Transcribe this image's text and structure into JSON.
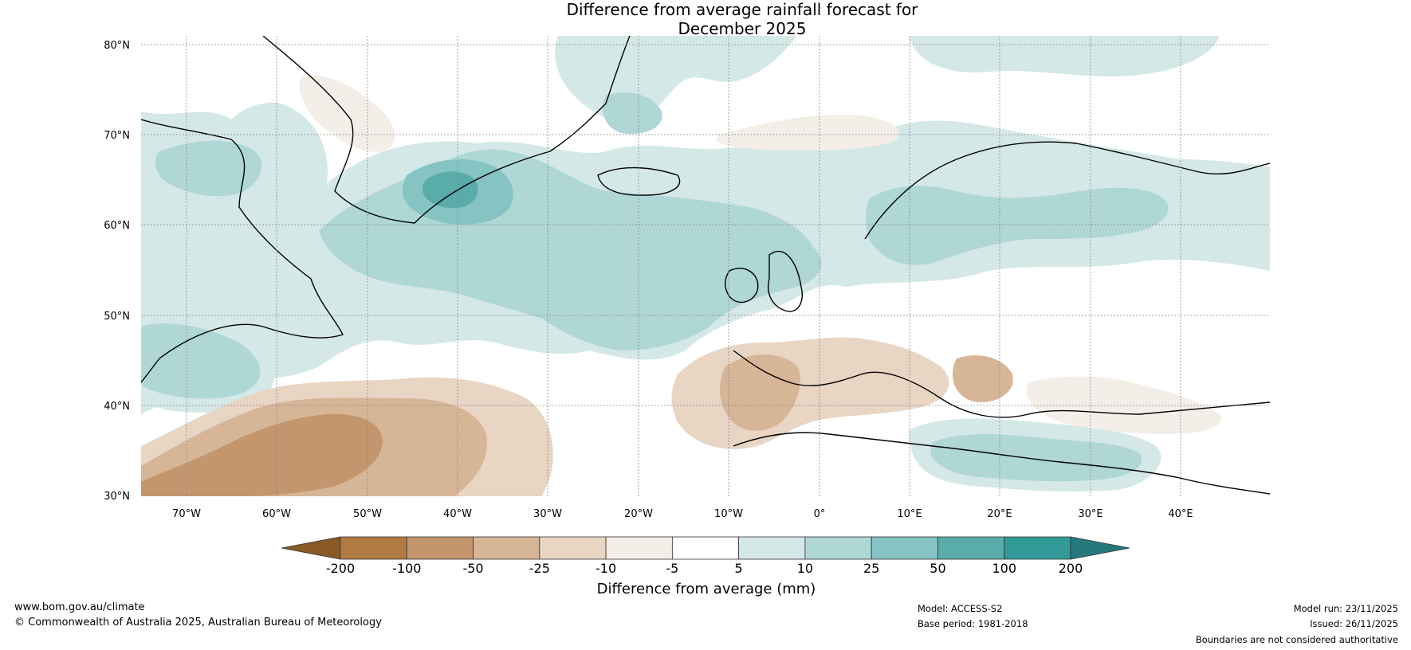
{
  "title_line1": "Difference from average rainfall forecast for",
  "title_line2": "December 2025",
  "lat_labels": [
    "80°N",
    "70°N",
    "60°N",
    "50°N",
    "40°N",
    "30°N"
  ],
  "lon_labels": [
    "70°W",
    "60°W",
    "50°W",
    "40°W",
    "30°W",
    "20°W",
    "10°W",
    "0°",
    "10°E",
    "20°E",
    "30°E",
    "40°E"
  ],
  "colorbar": {
    "ticks": [
      "-200",
      "-100",
      "-50",
      "-25",
      "-10",
      "-5",
      "5",
      "10",
      "25",
      "50",
      "100",
      "200"
    ],
    "colors": [
      "#8a5a25",
      "#b07a45",
      "#c4966d",
      "#d7b597",
      "#e8d5c4",
      "#f4eee8",
      "#ffffff",
      "#d4e8e7",
      "#aed7d6",
      "#85c4c2",
      "#59acaa",
      "#319a98",
      "#25797a"
    ],
    "label": "Difference from average (mm)"
  },
  "footer": {
    "site": "www.bom.gov.au/climate",
    "copyright": "© Commonwealth of Australia 2025, Australian Bureau of Meteorology",
    "model": "Model: ACCESS-S2",
    "base_period": "Base period: 1981-2018",
    "model_run": "Model run: 23/11/2025",
    "issued": "Issued: 26/11/2025",
    "disclaimer": "Boundaries are not considered authoritative"
  }
}
